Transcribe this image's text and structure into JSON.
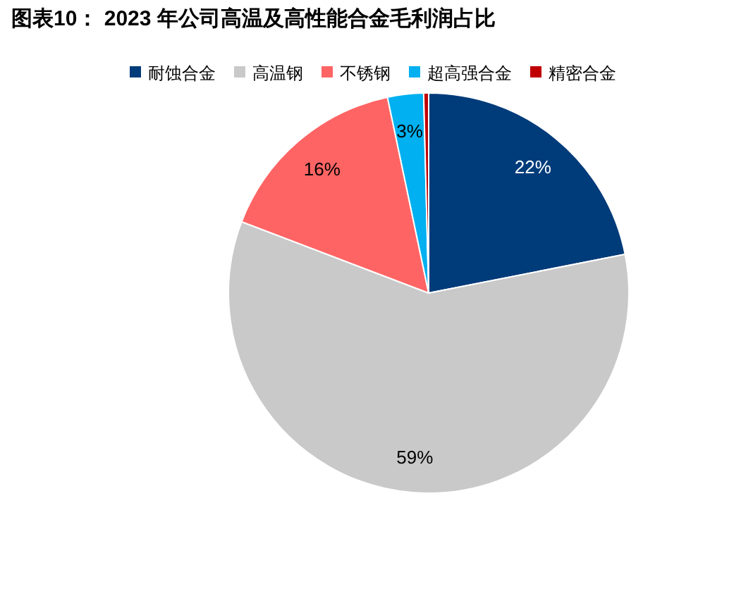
{
  "chart_data": {
    "type": "pie",
    "title": "图表10：  2023 年公司高温及高性能合金毛利润占比",
    "categories": [
      "耐蚀合金",
      "高温钢",
      "不锈钢",
      "超高强合金",
      "精密合金"
    ],
    "values": [
      21.9,
      58.9,
      15.9,
      2.9,
      0.4
    ],
    "value_labels": [
      "22%",
      "59%",
      "16%",
      "3%",
      null
    ],
    "colors": [
      "#003b7a",
      "#c9c9c9",
      "#ff6464",
      "#00b0f0",
      "#c00000"
    ],
    "legend": "top"
  }
}
